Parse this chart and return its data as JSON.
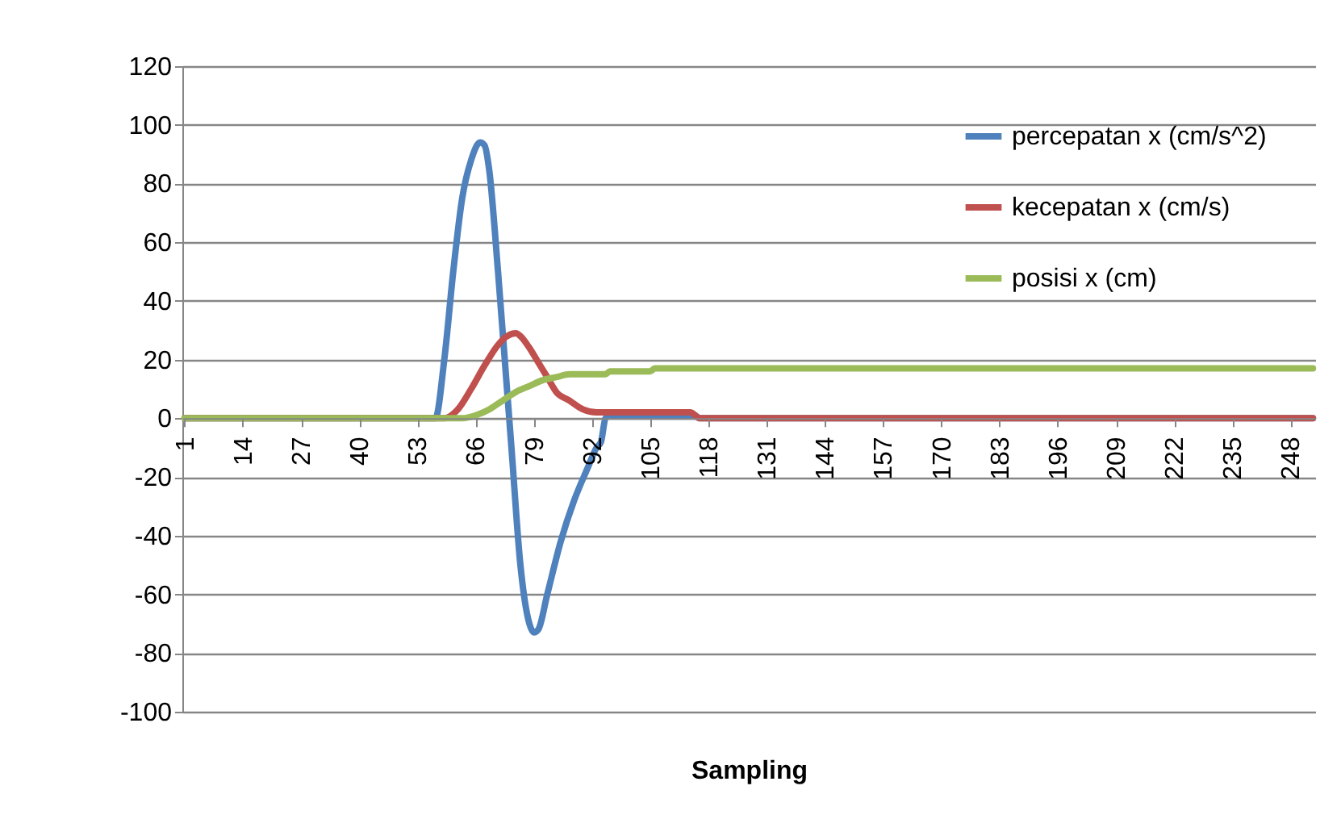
{
  "chart_data": {
    "type": "line",
    "xlabel": "Sampling",
    "xlim": [
      0.5,
      253.5
    ],
    "xticks": [
      1,
      14,
      27,
      40,
      53,
      66,
      79,
      92,
      105,
      118,
      131,
      144,
      157,
      170,
      183,
      196,
      209,
      222,
      235,
      248
    ],
    "ylim": [
      -100,
      120
    ],
    "yticks": [
      -100,
      -80,
      -60,
      -40,
      -20,
      0,
      20,
      40,
      60,
      80,
      100,
      120
    ],
    "grid": "y",
    "legend": "top right",
    "series": [
      {
        "name": "percepatan x (cm/s^2)",
        "color": "#4f81bd",
        "x": [
          1,
          57,
          59,
          61,
          63,
          65,
          67,
          68,
          69,
          71,
          73,
          74,
          76,
          78,
          79,
          80,
          82,
          85,
          88,
          91,
          93,
          94,
          95,
          96,
          115,
          116,
          253
        ],
        "values": [
          0,
          0,
          20,
          50,
          75,
          88,
          94,
          93,
          85,
          50,
          10,
          -10,
          -50,
          -70,
          -73,
          -72,
          -60,
          -42,
          -28,
          -17,
          -10,
          -8,
          0,
          1,
          1,
          0,
          0
        ]
      },
      {
        "name": "kecepatan x (cm/s)",
        "color": "#c0504d",
        "x": [
          1,
          59,
          62,
          65,
          68,
          71,
          73,
          75,
          76,
          78,
          80,
          82,
          84,
          87,
          90,
          93,
          114,
          116,
          253
        ],
        "values": [
          0,
          0,
          3,
          10,
          18,
          25,
          28,
          29,
          28,
          24,
          19,
          14,
          9,
          6,
          3,
          2,
          2,
          0,
          0
        ]
      },
      {
        "name": "posisi x (cm)",
        "color": "#9bbb59",
        "x": [
          1,
          63,
          66,
          69,
          72,
          75,
          78,
          81,
          84,
          87,
          95,
          96,
          105,
          106,
          253
        ],
        "values": [
          0,
          0,
          1,
          3,
          6,
          9,
          11,
          13,
          14,
          15,
          15,
          16,
          16,
          17,
          17
        ]
      }
    ]
  }
}
